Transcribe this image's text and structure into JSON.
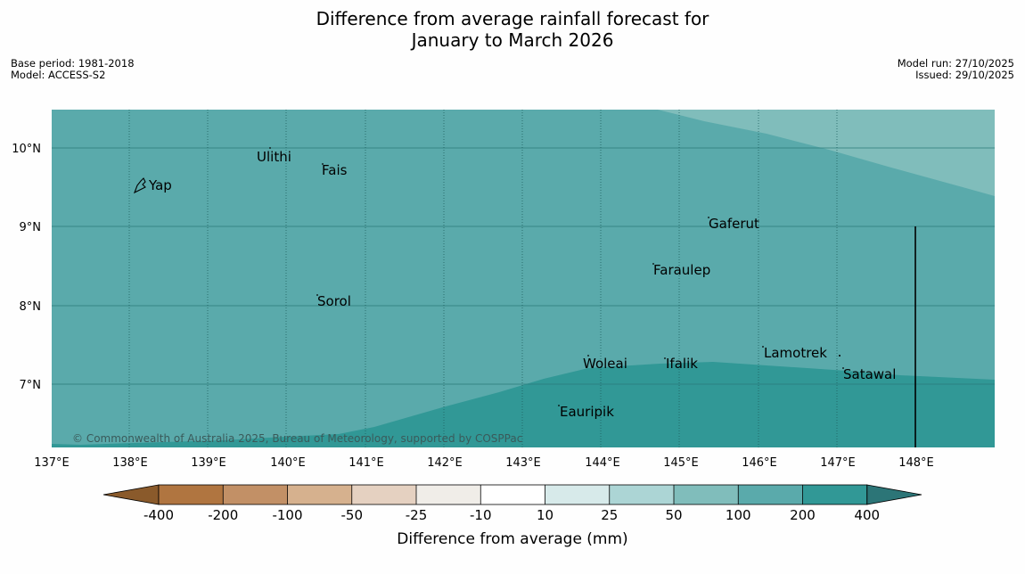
{
  "title_line1": "Difference from average rainfall forecast for",
  "title_line2": "January to March 2026",
  "meta": {
    "base_period": "Base period: 1981-2018",
    "model": "Model: ACCESS-S2",
    "model_run": "Model run: 27/10/2025",
    "issued": "Issued: 29/10/2025"
  },
  "map": {
    "lat_labels": [
      "10°N",
      "9°N",
      "8°N",
      "7°N"
    ],
    "lon_labels": [
      "137°E",
      "138°E",
      "139°E",
      "140°E",
      "141°E",
      "142°E",
      "143°E",
      "144°E",
      "145°E",
      "146°E",
      "147°E",
      "148°E"
    ],
    "places": {
      "ulithi": "Ulithi",
      "fais": "Fais",
      "yap": "Yap",
      "gaferut": "Gaferut",
      "faraulep": "Faraulep",
      "sorol": "Sorol",
      "lamotrek": "Lamotrek",
      "woleai": "Woleai",
      "ifalik": "Ifalik",
      "satawal": "Satawal",
      "eauripik": "Eauripik"
    },
    "copyright": "© Commonwealth of Australia 2025, Bureau of Meteorology, supported by COSPPac",
    "regions": [
      {
        "category": "50 to 100",
        "color": "#80bdbb"
      },
      {
        "category": "100 to 200",
        "color": "#5aaaab"
      },
      {
        "category": "200 to 400",
        "color": "#319896"
      }
    ]
  },
  "colorbar": {
    "ticks": [
      "-400",
      "-200",
      "-100",
      "-50",
      "-25",
      "-10",
      "10",
      "25",
      "50",
      "100",
      "200",
      "400"
    ],
    "colors": [
      "#8a5a2b",
      "#b07540",
      "#c29066",
      "#d6b18e",
      "#e5d1c1",
      "#f0ede8",
      "#ffffff",
      "#d7eaea",
      "#acd5d5",
      "#80bdbb",
      "#5aaaab",
      "#319896",
      "#2c7577"
    ],
    "label": "Difference from average (mm)"
  }
}
